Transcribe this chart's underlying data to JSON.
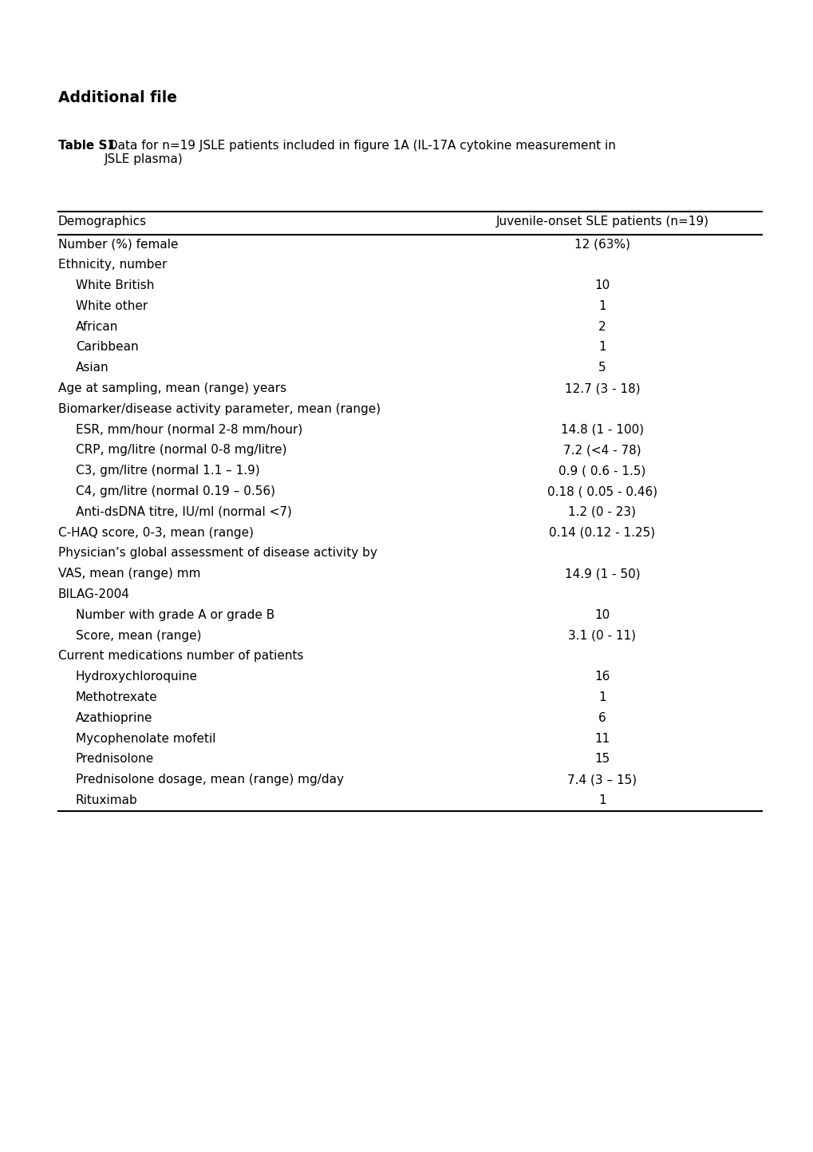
{
  "title_main": "Additional file",
  "caption_bold": "Table S1",
  "caption_normal": " Data for n=19 JSLE patients included in figure 1A (IL-17A cytokine measurement in\nJSLE plasma)",
  "col1_header": "Demographics",
  "col2_header": "Juvenile-onset SLE patients (n=19)",
  "rows": [
    {
      "label": "Number (%) female",
      "value": "12 (63%)",
      "indent": 0
    },
    {
      "label": "Ethnicity, number",
      "value": "",
      "indent": 0
    },
    {
      "label": "White British",
      "value": "10",
      "indent": 1
    },
    {
      "label": "White other",
      "value": "1",
      "indent": 1
    },
    {
      "label": "African",
      "value": "2",
      "indent": 1
    },
    {
      "label": "Caribbean",
      "value": "1",
      "indent": 1
    },
    {
      "label": "Asian",
      "value": "5",
      "indent": 1
    },
    {
      "label": "Age at sampling, mean (range) years",
      "value": "12.7 (3 - 18)",
      "indent": 0
    },
    {
      "label": "Biomarker/disease activity parameter, mean (range)",
      "value": "",
      "indent": 0
    },
    {
      "label": "ESR, mm/hour (normal 2-8 mm/hour)",
      "value": "14.8 (1 - 100)",
      "indent": 1
    },
    {
      "label": "CRP, mg/litre (normal 0-8 mg/litre)",
      "value": "7.2 (<4 - 78)",
      "indent": 1
    },
    {
      "label": "C3, gm/litre (normal 1.1 – 1.9)",
      "value": "0.9 ( 0.6 - 1.5)",
      "indent": 1
    },
    {
      "label": "C4, gm/litre (normal 0.19 – 0.56)",
      "value": "0.18 ( 0.05 - 0.46)",
      "indent": 1
    },
    {
      "label": "Anti-dsDNA titre, IU/ml (normal <7)",
      "value": "1.2 (0 - 23)",
      "indent": 1
    },
    {
      "label": "C-HAQ score, 0-3, mean (range)",
      "value": "0.14 (0.12 - 1.25)",
      "indent": 0
    },
    {
      "label": "Physician’s global assessment of disease activity by",
      "value": "",
      "indent": 0
    },
    {
      "label": "VAS, mean (range) mm",
      "value": "14.9 (1 - 50)",
      "indent": 0
    },
    {
      "label": "BILAG-2004",
      "value": "",
      "indent": 0
    },
    {
      "label": "Number with grade A or grade B",
      "value": "10",
      "indent": 1
    },
    {
      "label": "Score, mean (range)",
      "value": "3.1 (0 - 11)",
      "indent": 1
    },
    {
      "label": "Current medications number of patients",
      "value": "",
      "indent": 0
    },
    {
      "label": "Hydroxychloroquine",
      "value": "16",
      "indent": 1
    },
    {
      "label": "Methotrexate",
      "value": "1",
      "indent": 1
    },
    {
      "label": "Azathioprine",
      "value": "6",
      "indent": 1
    },
    {
      "label": "Mycophenolate mofetil",
      "value": "11",
      "indent": 1
    },
    {
      "label": "Prednisolone",
      "value": "15",
      "indent": 1
    },
    {
      "label": "Prednisolone dosage, mean (range) mg/day",
      "value": "7.4 (3 – 15)",
      "indent": 1
    },
    {
      "label": "Rituximab",
      "value": "1",
      "indent": 1
    }
  ],
  "background_color": "#ffffff",
  "text_color": "#000000",
  "font_size": 11.0,
  "header_font_size": 11.0,
  "title_font_size": 13.5,
  "caption_font_size": 11.0
}
